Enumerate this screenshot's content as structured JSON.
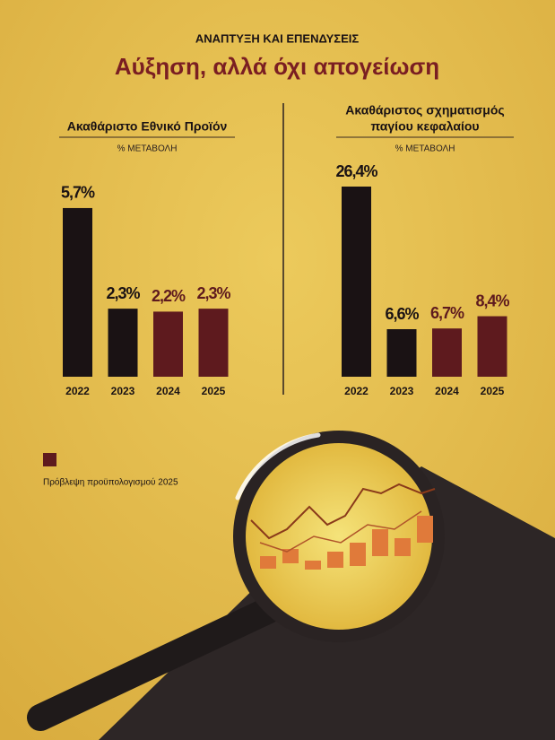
{
  "kicker": "ΑΝΑΠΤΥΞΗ ΚΑΙ ΕΠΕΝΔΥΣΕΙΣ",
  "title": "Αύξηση, αλλά όχι απογείωση",
  "legend": {
    "label": "Πρόβλεψη προϋπολογισμού 2025",
    "color": "#5e1a1e"
  },
  "chart_data": [
    {
      "type": "bar",
      "title": [
        "Ακαθάριστο Εθνικό Προϊόν"
      ],
      "subtitle": "% ΜΕΤΑΒΟΛΗ",
      "categories": [
        "2022",
        "2023",
        "2024",
        "2025"
      ],
      "values": [
        5.7,
        2.3,
        2.2,
        2.3
      ],
      "value_labels": [
        "5,7%",
        "2,3%",
        "2,2%",
        "2,3%"
      ],
      "colors": [
        "#1a1214",
        "#1a1214",
        "#5e1a1e",
        "#5e1a1e"
      ]
    },
    {
      "type": "bar",
      "title": [
        "Ακαθάριστος σχηματισμός",
        "παγίου κεφαλαίου"
      ],
      "subtitle": "% ΜΕΤΑΒΟΛΗ",
      "categories": [
        "2022",
        "2023",
        "2024",
        "2025"
      ],
      "values": [
        26.4,
        6.6,
        6.7,
        8.4
      ],
      "value_labels": [
        "26,4%",
        "6,6%",
        "6,7%",
        "8,4%"
      ],
      "colors": [
        "#1a1214",
        "#1a1214",
        "#5e1a1e",
        "#5e1a1e"
      ]
    }
  ]
}
